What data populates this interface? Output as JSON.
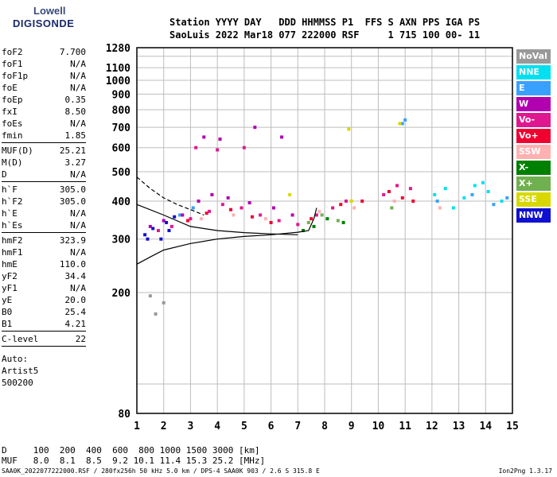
{
  "logo": {
    "line1": "Lowell",
    "line2": "DIGISONDE"
  },
  "header": {
    "line1": "Station YYYY DAY   DDD HHMMSS P1  FFS S AXN PPS IGA PS",
    "line2": "SaoLuis 2022 Mar18 077 222000 RSF     1 715 100 00- 11"
  },
  "params": [
    {
      "k": "foF2",
      "v": "7.700"
    },
    {
      "k": "foF1",
      "v": "N/A"
    },
    {
      "k": "foF1p",
      "v": "N/A"
    },
    {
      "k": "foE",
      "v": "N/A"
    },
    {
      "k": "foEp",
      "v": "0.35"
    },
    {
      "k": "fxI",
      "v": "8.50"
    },
    {
      "k": "foEs",
      "v": "N/A"
    },
    {
      "k": "fmin",
      "v": "1.85"
    },
    {
      "sep": true
    },
    {
      "k": "MUF(D)",
      "v": "25.21"
    },
    {
      "k": "M(D)",
      "v": "3.27"
    },
    {
      "k": "D",
      "v": "N/A"
    },
    {
      "sep": true
    },
    {
      "k": "h`F",
      "v": "305.0"
    },
    {
      "k": "h`F2",
      "v": "305.0"
    },
    {
      "k": "h`E",
      "v": "N/A"
    },
    {
      "k": "h`Es",
      "v": "N/A"
    },
    {
      "sep": true
    },
    {
      "k": "hmF2",
      "v": "323.9"
    },
    {
      "k": "hmF1",
      "v": "N/A"
    },
    {
      "k": "hmE",
      "v": "110.0"
    },
    {
      "k": "yF2",
      "v": "34.4"
    },
    {
      "k": "yF1",
      "v": "N/A"
    },
    {
      "k": "yE",
      "v": "20.0"
    },
    {
      "k": "B0",
      "v": "25.4"
    },
    {
      "k": "B1",
      "v": "4.21"
    },
    {
      "sep": true
    },
    {
      "k": "C-level",
      "v": "22"
    },
    {
      "sep": true
    }
  ],
  "auto": {
    "line1": "Auto:",
    "line2": "Artist5",
    "line3": "500200"
  },
  "legend": [
    {
      "label": "NoVal",
      "color": "#999999"
    },
    {
      "label": "NNE",
      "color": "#00e0f0"
    },
    {
      "label": "E",
      "color": "#3aa0ff"
    },
    {
      "label": "W",
      "color": "#b000b0"
    },
    {
      "label": "Vo-",
      "color": "#e01890"
    },
    {
      "label": "Vo+",
      "color": "#f00030"
    },
    {
      "label": "SSW",
      "color": "#ffb0b0"
    },
    {
      "label": "X-",
      "color": "#008000"
    },
    {
      "label": "X+",
      "color": "#70b050"
    },
    {
      "label": "SSE",
      "color": "#d8d800"
    },
    {
      "label": "NNW",
      "color": "#1010d0"
    }
  ],
  "bottom": {
    "line1": "D     100  200  400  600  800 1000 1500 3000 [km]",
    "line2": "MUF   8.0  8.1  8.5  9.2 10.1 11.4 15.3 25.2 [MHz]"
  },
  "footer": "SAA0K_2022077222000.RSF / 280fx256h 50 kHz 5.0 km / DPS-4 SAA0K 903 / 2.6 S 315.8 E",
  "version": "Ion2Png 1.3.17",
  "chart_data": {
    "type": "scatter",
    "title": "",
    "xlabel": "",
    "ylabel": "",
    "x_range": [
      1,
      15
    ],
    "y_range": [
      80,
      1280
    ],
    "y_scale": "log",
    "x_ticks": [
      1,
      2,
      3,
      4,
      5,
      6,
      7,
      8,
      9,
      10,
      11,
      12,
      13,
      14,
      15
    ],
    "y_ticks": [
      80,
      200,
      300,
      400,
      500,
      600,
      700,
      800,
      900,
      1000,
      1100,
      1280
    ],
    "grid": true,
    "series": [
      {
        "name": "NNE",
        "color": "#00e0f0",
        "points": [
          [
            12.1,
            420
          ],
          [
            12.5,
            440
          ],
          [
            13.2,
            410
          ],
          [
            13.6,
            450
          ],
          [
            14.1,
            430
          ],
          [
            14.6,
            400
          ],
          [
            12.8,
            380
          ],
          [
            13.9,
            460
          ]
        ]
      },
      {
        "name": "E",
        "color": "#3aa0ff",
        "points": [
          [
            2.6,
            360
          ],
          [
            3.1,
            380
          ],
          [
            12.2,
            400
          ],
          [
            13.5,
            420
          ],
          [
            14.3,
            390
          ],
          [
            14.8,
            410
          ],
          [
            11.0,
            740
          ],
          [
            10.9,
            720
          ]
        ]
      },
      {
        "name": "W",
        "color": "#b000b0",
        "points": [
          [
            1.5,
            330
          ],
          [
            2.0,
            345
          ],
          [
            2.7,
            360
          ],
          [
            3.3,
            400
          ],
          [
            3.8,
            420
          ],
          [
            4.4,
            410
          ],
          [
            5.2,
            395
          ],
          [
            6.1,
            380
          ],
          [
            6.8,
            360
          ],
          [
            3.5,
            650
          ],
          [
            4.1,
            640
          ],
          [
            5.4,
            700
          ],
          [
            6.4,
            650
          ]
        ]
      },
      {
        "name": "Vo-",
        "color": "#e01890",
        "points": [
          [
            1.8,
            320
          ],
          [
            2.3,
            330
          ],
          [
            3.0,
            350
          ],
          [
            3.7,
            370
          ],
          [
            4.2,
            390
          ],
          [
            4.9,
            380
          ],
          [
            5.6,
            360
          ],
          [
            6.3,
            345
          ],
          [
            7.0,
            335
          ],
          [
            7.7,
            360
          ],
          [
            8.3,
            380
          ],
          [
            8.8,
            400
          ],
          [
            10.2,
            420
          ],
          [
            10.7,
            450
          ],
          [
            11.2,
            440
          ],
          [
            3.2,
            600
          ],
          [
            4.0,
            590
          ],
          [
            5.0,
            600
          ]
        ]
      },
      {
        "name": "Vo+",
        "color": "#f00030",
        "points": [
          [
            2.9,
            345
          ],
          [
            3.6,
            365
          ],
          [
            4.5,
            375
          ],
          [
            5.3,
            355
          ],
          [
            6.0,
            340
          ],
          [
            7.5,
            350
          ],
          [
            8.6,
            390
          ],
          [
            9.4,
            400
          ],
          [
            10.4,
            430
          ],
          [
            10.9,
            410
          ],
          [
            11.3,
            400
          ]
        ]
      },
      {
        "name": "SSW",
        "color": "#ffb0b0",
        "points": [
          [
            3.4,
            350
          ],
          [
            4.6,
            360
          ],
          [
            5.8,
            350
          ],
          [
            7.8,
            370
          ],
          [
            9.1,
            380
          ],
          [
            10.6,
            400
          ],
          [
            12.3,
            380
          ]
        ]
      },
      {
        "name": "X-",
        "color": "#008000",
        "points": [
          [
            7.2,
            320
          ],
          [
            7.6,
            330
          ],
          [
            8.1,
            350
          ],
          [
            8.7,
            340
          ]
        ]
      },
      {
        "name": "X+",
        "color": "#70b050",
        "points": [
          [
            7.4,
            340
          ],
          [
            7.9,
            360
          ],
          [
            8.5,
            345
          ],
          [
            10.5,
            380
          ]
        ]
      },
      {
        "name": "SSE",
        "color": "#d8d800",
        "points": [
          [
            8.9,
            690
          ],
          [
            6.7,
            420
          ],
          [
            9.0,
            400
          ],
          [
            10.8,
            720
          ]
        ]
      },
      {
        "name": "NNW",
        "color": "#1010d0",
        "points": [
          [
            1.3,
            310
          ],
          [
            1.6,
            325
          ],
          [
            2.1,
            340
          ],
          [
            2.4,
            355
          ],
          [
            1.9,
            300
          ],
          [
            1.4,
            300
          ],
          [
            2.2,
            320
          ]
        ]
      },
      {
        "name": "NoVal",
        "color": "#999999",
        "points": [
          [
            1.5,
            195
          ],
          [
            1.7,
            170
          ],
          [
            2.0,
            185
          ]
        ]
      }
    ],
    "curves": [
      {
        "name": "trace",
        "color": "#000000",
        "style": "solid",
        "points": [
          [
            1,
            248
          ],
          [
            1.5,
            262
          ],
          [
            2,
            276
          ],
          [
            3,
            290
          ],
          [
            4,
            300
          ],
          [
            5,
            306
          ],
          [
            6,
            310
          ],
          [
            7,
            316
          ],
          [
            7.4,
            320
          ],
          [
            7.6,
            350
          ],
          [
            7.7,
            380
          ]
        ]
      },
      {
        "name": "profile",
        "color": "#000000",
        "style": "dashed",
        "points": [
          [
            1,
            480
          ],
          [
            1.5,
            440
          ],
          [
            2,
            410
          ],
          [
            2.5,
            390
          ],
          [
            3,
            375
          ],
          [
            3.5,
            360
          ]
        ]
      },
      {
        "name": "profile-low",
        "color": "#000000",
        "style": "solid",
        "points": [
          [
            1,
            390
          ],
          [
            2,
            360
          ],
          [
            3,
            330
          ],
          [
            4,
            320
          ],
          [
            5,
            315
          ],
          [
            6,
            312
          ],
          [
            7,
            310
          ]
        ]
      }
    ]
  }
}
